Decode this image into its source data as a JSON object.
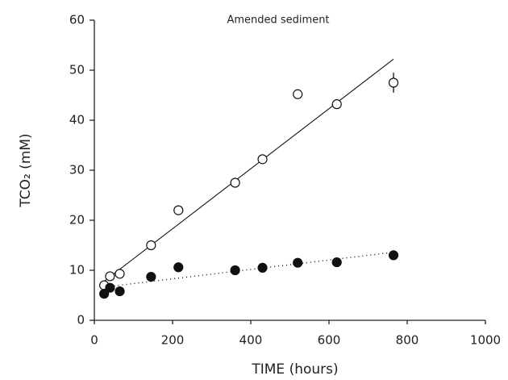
{
  "chart_data": {
    "type": "scatter",
    "title": "Amended sediment",
    "x_label": "TIME (hours)",
    "y_label": "TCO₂ (mM)",
    "xlim": [
      0,
      1000
    ],
    "xticks": [
      0,
      200,
      400,
      600,
      800,
      1000
    ],
    "ylim": [
      0,
      60
    ],
    "yticks": [
      0,
      10,
      20,
      30,
      40,
      50,
      60
    ],
    "grid": false,
    "series": [
      {
        "marker": "open",
        "color": "#111111",
        "x": [
          25,
          40,
          65,
          145,
          215,
          360,
          430,
          520,
          620,
          765
        ],
        "values": [
          7,
          8.8,
          9.3,
          15,
          22,
          27.5,
          32.2,
          45.2,
          43.2,
          47.5
        ],
        "errors": [
          null,
          null,
          null,
          null,
          null,
          null,
          null,
          null,
          null,
          2
        ]
      },
      {
        "marker": "filled",
        "color": "#111111",
        "x": [
          25,
          40,
          65,
          145,
          215,
          360,
          430,
          520,
          620,
          765
        ],
        "values": [
          5.3,
          6.5,
          5.8,
          8.7,
          10.6,
          10,
          10.5,
          11.5,
          11.6,
          13
        ]
      }
    ],
    "fits": [
      {
        "style": "solid",
        "color": "#111111",
        "x": [
          20,
          765
        ],
        "values": [
          7.5,
          52.2
        ]
      },
      {
        "style": "dotted",
        "color": "#111111",
        "x": [
          20,
          765
        ],
        "values": [
          6.6,
          13.6
        ]
      }
    ]
  }
}
